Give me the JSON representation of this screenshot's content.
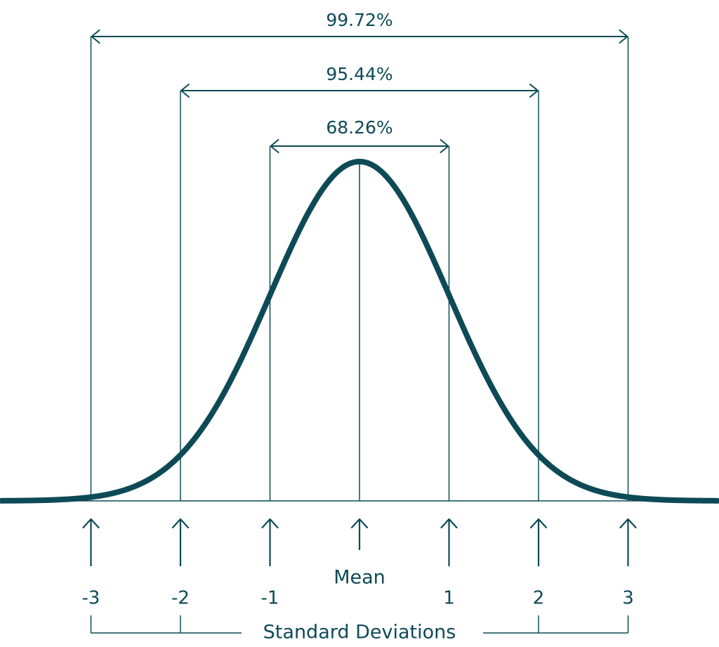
{
  "diagram": {
    "color": "#0d4a56",
    "background": "#ffffff",
    "mean_label": "Mean",
    "axis_caption": "Standard Deviations",
    "intervals": [
      {
        "sigma": 1,
        "label": "68.26%"
      },
      {
        "sigma": 2,
        "label": "95.44%"
      },
      {
        "sigma": 3,
        "label": "99.72%"
      }
    ],
    "ticks": [
      {
        "sigma": -3,
        "label": "-3"
      },
      {
        "sigma": -2,
        "label": "-2"
      },
      {
        "sigma": -1,
        "label": "-1"
      },
      {
        "sigma": 0,
        "label": ""
      },
      {
        "sigma": 1,
        "label": "1"
      },
      {
        "sigma": 2,
        "label": "2"
      },
      {
        "sigma": 3,
        "label": "3"
      }
    ],
    "x_range": [
      -4,
      4
    ]
  }
}
